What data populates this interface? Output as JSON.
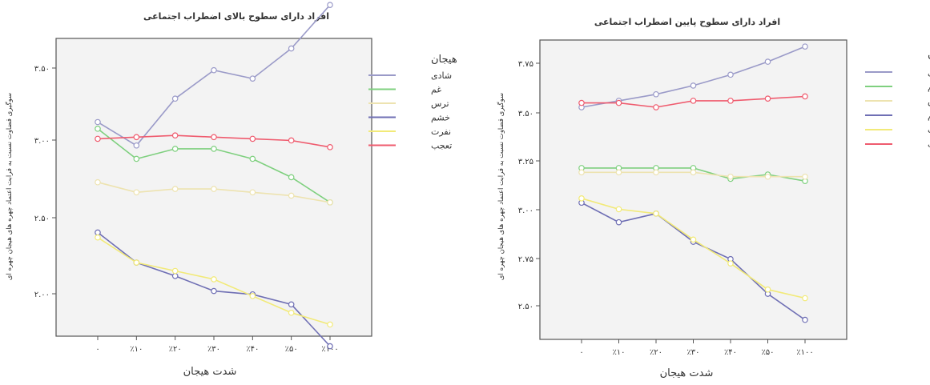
{
  "chart_data": [
    {
      "type": "line",
      "title": "افراد دارای سطوح بالای اضطراب اجتماعی",
      "xlabel": "شدت هیجان",
      "ylabel": "سوگیری قضاوت نسبت به قرابت اعتماد چهره های هیجان چهره ای",
      "categories": [
        "۰",
        "٪۱۰",
        "٪۲۰",
        "٪۳۰",
        "٪۴۰",
        "٪۵۰",
        "٪۱۰۰"
      ],
      "yticks": [
        "۲.۰۰",
        "۲.۵۰",
        "۳.۰۰",
        "۳.۵۰"
      ],
      "ylim": [
        1.86,
        3.64
      ],
      "legend_title": "هیجان",
      "legend_position": "right",
      "grid": false,
      "series": [
        {
          "name": "شادی",
          "color": "#9a9ac8",
          "values": [
            3.14,
            3.0,
            3.28,
            3.45,
            3.4,
            3.58,
            3.84
          ]
        },
        {
          "name": "غم",
          "color": "#7fd07f",
          "values": [
            3.1,
            2.92,
            2.98,
            2.98,
            2.92,
            2.81,
            2.66
          ]
        },
        {
          "name": "ترس",
          "color": "#ede3b0",
          "values": [
            2.78,
            2.72,
            2.74,
            2.74,
            2.72,
            2.7,
            2.66
          ]
        },
        {
          "name": "خشم",
          "color": "#6f6fb4",
          "values": [
            2.48,
            2.3,
            2.22,
            2.13,
            2.11,
            2.05,
            1.8
          ]
        },
        {
          "name": "نفرت",
          "color": "#f2ea78",
          "values": [
            2.45,
            2.3,
            2.25,
            2.2,
            2.1,
            2.0,
            1.93
          ]
        },
        {
          "name": "تعجب",
          "color": "#ef5b6e",
          "values": [
            3.04,
            3.05,
            3.06,
            3.05,
            3.04,
            3.03,
            2.99
          ]
        }
      ]
    },
    {
      "type": "line",
      "title": "افراد دارای سطوح پایین اضطراب اجتماعی",
      "xlabel": "شدت هیجان",
      "ylabel": "سوگیری قضاوت نسبت به قرابت اعتماد چهره های هیجان چهره ای",
      "categories": [
        "۰",
        "٪۱۰",
        "٪۲۰",
        "٪۳۰",
        "٪۴۰",
        "٪۵۰",
        "٪۱۰۰"
      ],
      "yticks": [
        "۲.۵۰",
        "۲.۷۵",
        "۳.۰۰",
        "۳.۲۵",
        "۳.۵۰",
        "۳.۷۵"
      ],
      "ylim": [
        2.45,
        3.83
      ],
      "legend_title": "هیجان",
      "legend_position": "right",
      "grid": false,
      "series": [
        {
          "name": "شادی",
          "color": "#9a9ac8",
          "values": [
            3.52,
            3.55,
            3.58,
            3.62,
            3.67,
            3.73,
            3.8
          ]
        },
        {
          "name": "غم",
          "color": "#7fd07f",
          "values": [
            3.24,
            3.24,
            3.24,
            3.24,
            3.19,
            3.21,
            3.18
          ]
        },
        {
          "name": "ترس",
          "color": "#ede3b0",
          "values": [
            3.22,
            3.22,
            3.22,
            3.22,
            3.2,
            3.2,
            3.2
          ]
        },
        {
          "name": "خشم",
          "color": "#6f6fb4",
          "values": [
            3.08,
            2.99,
            3.03,
            2.9,
            2.82,
            2.66,
            2.54
          ]
        },
        {
          "name": "نفرت",
          "color": "#f2ea78",
          "values": [
            3.1,
            3.05,
            3.03,
            2.91,
            2.8,
            2.68,
            2.64
          ]
        },
        {
          "name": "تعجب",
          "color": "#ef5b6e",
          "values": [
            3.54,
            3.54,
            3.52,
            3.55,
            3.55,
            3.56,
            3.57
          ]
        }
      ]
    }
  ]
}
